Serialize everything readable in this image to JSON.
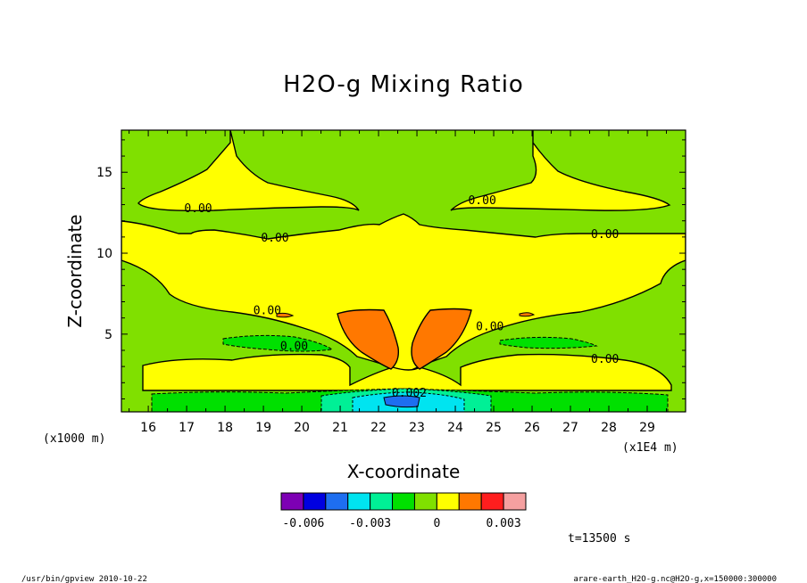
{
  "chart_data": {
    "type": "heatmap",
    "subtype": "filled-contour",
    "title": "H2O-g Mixing Ratio",
    "xlabel": "X-coordinate",
    "ylabel": "Z-coordinate",
    "x_unit": "(x1E4 m)",
    "y_unit": "(x1000 m)",
    "xlim": [
      15.3,
      30.0
    ],
    "ylim": [
      0.2,
      17.6
    ],
    "x_ticks": [
      "16",
      "17",
      "18",
      "19",
      "20",
      "21",
      "22",
      "23",
      "24",
      "25",
      "26",
      "27",
      "28",
      "29"
    ],
    "y_ticks": [
      "5",
      "10",
      "15"
    ],
    "contour_labels": [
      {
        "text": "0.00",
        "x": 17.3,
        "y": 12.8
      },
      {
        "text": "0.00",
        "x": 19.3,
        "y": 11.0
      },
      {
        "text": "0.00",
        "x": 24.7,
        "y": 13.3
      },
      {
        "text": "0.00",
        "x": 27.9,
        "y": 11.2
      },
      {
        "text": "0.00",
        "x": 19.1,
        "y": 6.5
      },
      {
        "text": "0.00",
        "x": 24.9,
        "y": 5.5
      },
      {
        "text": "0.00",
        "x": 19.8,
        "y": 4.3
      },
      {
        "text": "0.00",
        "x": 27.9,
        "y": 3.5
      },
      {
        "text": "0.002",
        "x": 22.8,
        "y": 1.4
      }
    ],
    "colorbar": {
      "colors": [
        "#7d00b4",
        "#0000e0",
        "#1e6ef0",
        "#00e4f0",
        "#00f096",
        "#00e000",
        "#80e000",
        "#ffff00",
        "#ff7800",
        "#ff1e1e",
        "#f5a0a0"
      ],
      "tick_labels": [
        "-0.006",
        "-0.003",
        "0",
        "0.003"
      ]
    },
    "time_label": "t=13500 s"
  },
  "footer": {
    "left": "/usr/bin/gpview   2010-10-22",
    "right": "arare-earth_H2O-g.nc@H2O-g,x=150000:300000"
  }
}
